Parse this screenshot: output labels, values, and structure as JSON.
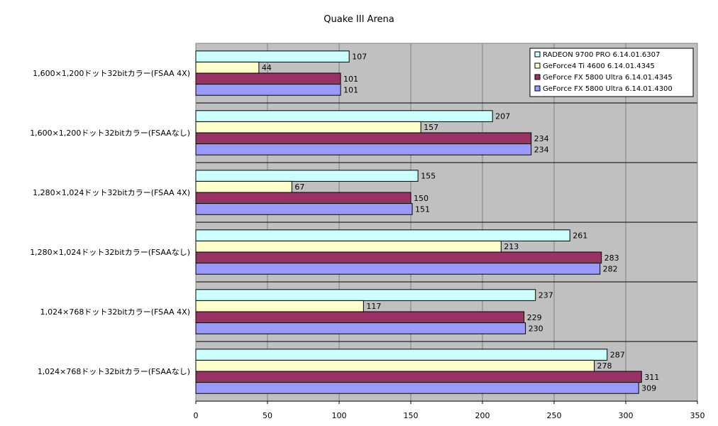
{
  "chart_data": {
    "type": "bar",
    "orientation": "horizontal",
    "title": "Quake III Arena",
    "xlim": [
      0,
      350
    ],
    "x_ticks": [
      0,
      50,
      100,
      150,
      200,
      250,
      300,
      350
    ],
    "grid": true,
    "legend_position": "top-right",
    "categories": [
      "1,600×1,200ドット32bitカラー(FSAA 4X)",
      "1,600×1,200ドット32bitカラー(FSAAなし)",
      "1,280×1,024ドット32bitカラー(FSAA 4X)",
      "1,280×1,024ドット32bitカラー(FSAAなし)",
      "1,024×768ドット32bitカラー(FSAA 4X)",
      "1,024×768ドット32bitカラー(FSAAなし)"
    ],
    "series": [
      {
        "name": "RADEON 9700 PRO 6.14.01.6307",
        "color": "#ccffff",
        "values": [
          107,
          207,
          155,
          261,
          237,
          287
        ]
      },
      {
        "name": "GeForce4 Ti 4600 6.14.01.4345",
        "color": "#ffffcc",
        "values": [
          44,
          157,
          67,
          213,
          117,
          278
        ]
      },
      {
        "name": "GeForce FX 5800 Ultra 6.14.01.4345",
        "color": "#993366",
        "values": [
          101,
          234,
          150,
          283,
          229,
          311
        ]
      },
      {
        "name": "GeForce FX 5800 Ultra 6.14.01.4300",
        "color": "#9999ff",
        "values": [
          101,
          234,
          151,
          282,
          230,
          309
        ]
      }
    ],
    "plot_background": "#c0c0c0"
  }
}
